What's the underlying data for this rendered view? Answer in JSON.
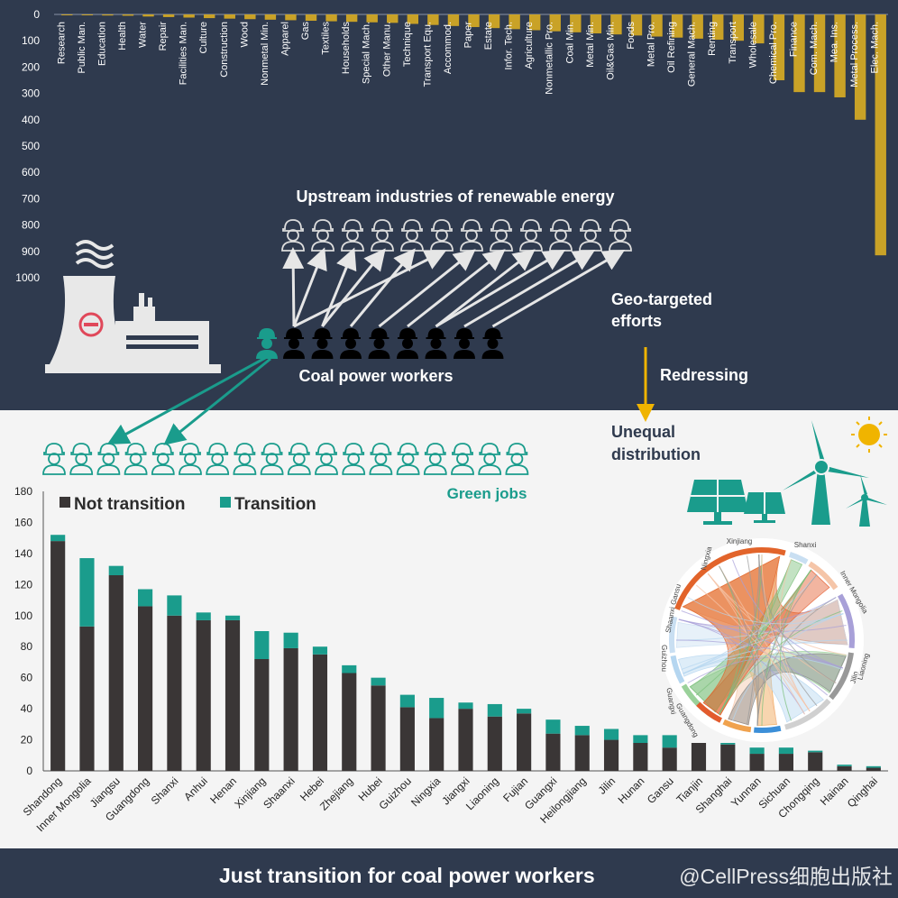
{
  "top_panel": {
    "upstream_label": "Upstream industries of renewable energy",
    "coal_workers_label": "Coal power workers",
    "geo_label_line1": "Geo-targeted",
    "geo_label_line2": "efforts",
    "redressing_label": "Redressing",
    "unequal_line1": "Unequal",
    "unequal_line2": "distribution"
  },
  "bottom_panel": {
    "green_jobs_label": "Green jobs"
  },
  "footer": {
    "title": "Just transition for coal power workers",
    "watermark": "@CellPress细胞出版社"
  },
  "colors": {
    "navy": "#2f3a4e",
    "gold": "#c9a227",
    "teal": "#1a9c8c",
    "dark_bar": "#3a3636",
    "arrow_gold": "#f0b400"
  },
  "chord_labels": [
    "Xinjiang",
    "Ningxia",
    "Gansu",
    "Shanxi",
    "Shaanxi",
    "Guizhou",
    "Guangxi",
    "Guangdong",
    "Shanxi",
    "Inner Mongolia",
    "Jilin",
    "Liaoning"
  ],
  "chart_data": [
    {
      "type": "bar",
      "orientation": "inverted",
      "categories": [
        "Research",
        "Public Man.",
        "Education",
        "Health",
        "Water",
        "Repair",
        "Facilities Man.",
        "Culture",
        "Construction",
        "Wood",
        "Nonmetal Min.",
        "Apparel",
        "Gas",
        "Textiles",
        "Households",
        "Special Mach.",
        "Other Manu.",
        "Technique",
        "Transport Equ.",
        "Accommod.",
        "Paper",
        "Estate",
        "Infor. Tech.",
        "Agriculture",
        "Nonmetallic Pro.",
        "Coal Min.",
        "Metal Min.",
        "Oil&Gas Min.",
        "Foods",
        "Metal Pro.",
        "Oil Refining",
        "General Mach.",
        "Renting",
        "Transport",
        "Wholesale",
        "Chemical Pro.",
        "Finance",
        "Com. Mach.",
        "Mea. Ins.",
        "Metal Process.",
        "Elec. Mach."
      ],
      "values": [
        2,
        3,
        4,
        5,
        8,
        10,
        12,
        14,
        16,
        18,
        20,
        22,
        24,
        26,
        28,
        30,
        32,
        36,
        40,
        44,
        48,
        52,
        56,
        60,
        64,
        68,
        72,
        76,
        80,
        84,
        88,
        92,
        96,
        100,
        110,
        250,
        295,
        295,
        315,
        400,
        915
      ],
      "yticks": [
        "0",
        "100",
        "200",
        "300",
        "400",
        "500",
        "600",
        "700",
        "800",
        "900",
        "1000"
      ],
      "ylim": [
        0,
        1000
      ]
    },
    {
      "type": "bar",
      "stacked": true,
      "categories": [
        "Shandong",
        "Inner Mongolia",
        "Jiangsu",
        "Guangdong",
        "Shanxi",
        "Anhui",
        "Henan",
        "Xinjiang",
        "Shaanxi",
        "Hebei",
        "Zhejiang",
        "Hubei",
        "Guizhou",
        "Ningxia",
        "Jiangxi",
        "Liaoning",
        "Fujian",
        "Guangxi",
        "Heilongjiang",
        "Jilin",
        "Hunan",
        "Gansu",
        "Tianjin",
        "Shanghai",
        "Yunnan",
        "Sichuan",
        "Chongqing",
        "Hainan",
        "Qinghai"
      ],
      "series": [
        {
          "name": "Not transition",
          "values": [
            148,
            93,
            126,
            106,
            100,
            97,
            97,
            72,
            79,
            75,
            63,
            55,
            41,
            34,
            40,
            35,
            37,
            24,
            23,
            20,
            18,
            15,
            18,
            17,
            11,
            11,
            12,
            3,
            2
          ]
        },
        {
          "name": "Transition",
          "values": [
            4,
            44,
            6,
            11,
            13,
            5,
            3,
            18,
            10,
            5,
            5,
            5,
            8,
            13,
            4,
            8,
            3,
            9,
            6,
            7,
            5,
            8,
            0,
            1,
            4,
            4,
            1,
            1,
            1
          ]
        }
      ],
      "yticks": [
        "0",
        "20",
        "40",
        "60",
        "80",
        "100",
        "120",
        "140",
        "160",
        "180"
      ],
      "ylim": [
        0,
        180
      ],
      "legend_position": "top-left"
    }
  ]
}
